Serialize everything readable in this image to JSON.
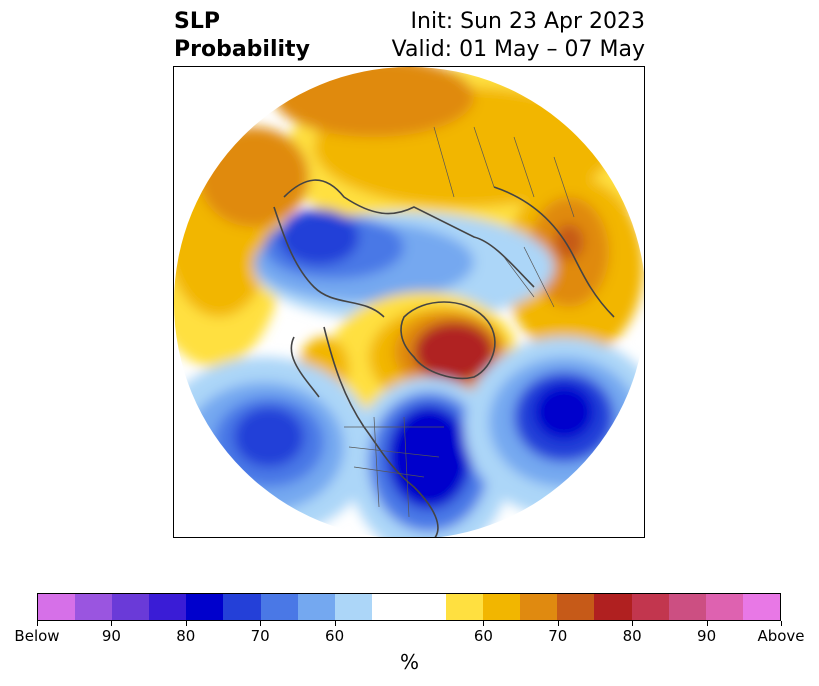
{
  "title": {
    "left_line1": "SLP",
    "left_line2": "Probability",
    "right_line1": "Init: Sun 23 Apr 2023",
    "right_line2": "Valid: 01 May – 07 May"
  },
  "colorbar": {
    "unit_label": "%",
    "colors": [
      "#d670e8",
      "#9a55e0",
      "#6a3ad8",
      "#3a1cd6",
      "#0000cc",
      "#2440d8",
      "#4a78e6",
      "#74a8f0",
      "#acd6f8",
      "#ffffff",
      "#ffffff",
      "#ffe040",
      "#f2b600",
      "#e08a10",
      "#c65a18",
      "#b02020",
      "#c2364e",
      "#cc4f82",
      "#de62b0",
      "#e878e6"
    ],
    "tick_labels": [
      "Below",
      "90",
      "80",
      "70",
      "60",
      "60",
      "70",
      "80",
      "90",
      "Above"
    ]
  },
  "map": {
    "projection": "north-polar-stereographic",
    "anomaly_colors": {
      "strong_below": "#0000cc",
      "below": "#2440d8",
      "weak_below": "#74a8f0",
      "near_normal": "#ffffff",
      "weak_above": "#ffe040",
      "above": "#f2b600",
      "strong_above": "#e08a10",
      "very_strong_above": "#b02020"
    }
  }
}
